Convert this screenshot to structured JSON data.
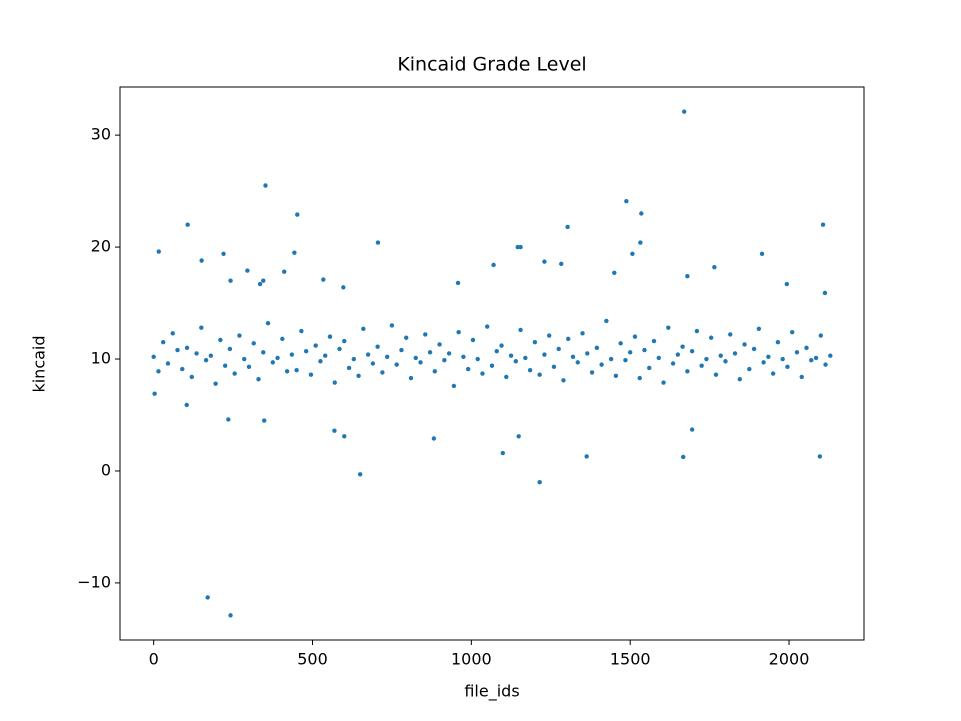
{
  "chart_data": {
    "type": "scatter",
    "title": "Kincaid Grade Level",
    "xlabel": "file_ids",
    "ylabel": "kincaid",
    "xlim": [
      -106,
      2236
    ],
    "ylim": [
      -15.1,
      34.3
    ],
    "xticks": [
      0,
      500,
      1000,
      1500,
      2000
    ],
    "yticks": [
      {
        "value": -10,
        "label": "−10"
      },
      0,
      10,
      20,
      30
    ],
    "color": "#1f77b4",
    "x": [
      0,
      15,
      30,
      45,
      60,
      75,
      90,
      105,
      120,
      135,
      150,
      165,
      180,
      195,
      210,
      225,
      240,
      255,
      270,
      285,
      300,
      315,
      330,
      345,
      360,
      375,
      390,
      405,
      420,
      435,
      450,
      465,
      480,
      495,
      510,
      525,
      540,
      555,
      570,
      585,
      600,
      615,
      630,
      645,
      660,
      675,
      690,
      705,
      720,
      735,
      750,
      765,
      780,
      795,
      810,
      825,
      840,
      855,
      870,
      885,
      900,
      915,
      930,
      945,
      960,
      975,
      990,
      1005,
      1020,
      1035,
      1050,
      1065,
      1080,
      1095,
      1110,
      1125,
      1140,
      1155,
      1170,
      1185,
      1200,
      1215,
      1230,
      1245,
      1260,
      1275,
      1290,
      1305,
      1320,
      1335,
      1350,
      1365,
      1380,
      1395,
      1410,
      1425,
      1440,
      1455,
      1470,
      1485,
      1500,
      1515,
      1530,
      1545,
      1560,
      1575,
      1590,
      1605,
      1620,
      1635,
      1650,
      1665,
      1680,
      1695,
      1710,
      1725,
      1740,
      1755,
      1770,
      1785,
      1800,
      1815,
      1830,
      1845,
      1860,
      1875,
      1890,
      1905,
      1920,
      1935,
      1950,
      1965,
      1980,
      1995,
      2010,
      2025,
      2040,
      2055,
      2070,
      2085,
      2100,
      2115,
      2130,
      1670,
      352,
      452,
      107,
      1488,
      1535,
      2107,
      1303,
      706,
      16,
      220,
      443,
      1915,
      1146,
      1155,
      1532,
      1507,
      151,
      1230,
      1283,
      1070,
      1450,
      1680,
      1765,
      411,
      295,
      242,
      335,
      345,
      534,
      597,
      958,
      2113,
      1993,
      170,
      242,
      650,
      1215,
      882,
      1099,
      1149,
      1363,
      1667,
      1695,
      2097,
      569,
      600,
      348,
      235,
      3,
      104
    ],
    "y": [
      10.2,
      8.9,
      11.5,
      9.6,
      12.3,
      10.8,
      9.1,
      11.0,
      8.4,
      10.5,
      12.8,
      9.9,
      10.3,
      7.8,
      11.7,
      9.4,
      10.9,
      8.7,
      12.1,
      10.0,
      9.3,
      11.4,
      8.2,
      10.6,
      13.2,
      9.7,
      10.1,
      11.8,
      8.9,
      10.4,
      9.0,
      12.5,
      10.7,
      8.6,
      11.2,
      9.8,
      10.3,
      12.0,
      7.9,
      10.9,
      11.6,
      9.2,
      10.0,
      8.5,
      12.7,
      10.4,
      9.6,
      11.1,
      8.8,
      10.2,
      13.0,
      9.5,
      10.8,
      11.9,
      8.3,
      10.1,
      9.7,
      12.2,
      10.6,
      8.9,
      11.3,
      9.9,
      10.5,
      7.6,
      12.4,
      10.2,
      9.1,
      11.7,
      10.0,
      8.7,
      12.9,
      9.4,
      10.7,
      11.2,
      8.4,
      10.3,
      9.8,
      12.6,
      10.1,
      9.0,
      11.5,
      8.6,
      10.4,
      12.1,
      9.3,
      10.9,
      8.1,
      11.8,
      10.2,
      9.7,
      12.3,
      10.5,
      8.8,
      11.0,
      9.5,
      13.4,
      10.0,
      8.5,
      11.4,
      9.9,
      10.6,
      12.0,
      8.3,
      10.8,
      9.2,
      11.6,
      10.1,
      7.9,
      12.8,
      9.6,
      10.4,
      11.1,
      8.9,
      10.7,
      12.5,
      9.4,
      10.0,
      11.9,
      8.6,
      10.3,
      9.8,
      12.2,
      10.5,
      8.2,
      11.3,
      9.1,
      10.9,
      12.7,
      9.7,
      10.2,
      8.7,
      11.5,
      10.0,
      9.3,
      12.4,
      10.6,
      8.4,
      11.0,
      9.9,
      10.1,
      12.1,
      9.5,
      10.3,
      32.1,
      25.5,
      22.9,
      22.0,
      24.1,
      23.0,
      22.0,
      21.8,
      20.4,
      19.6,
      19.4,
      19.5,
      19.4,
      20.0,
      20.0,
      20.4,
      19.4,
      18.8,
      18.7,
      18.5,
      18.4,
      17.7,
      17.4,
      18.2,
      17.8,
      17.9,
      17.0,
      16.7,
      17.0,
      17.1,
      16.4,
      16.8,
      15.9,
      16.7,
      -11.3,
      -12.9,
      -0.3,
      -1.0,
      2.9,
      1.6,
      3.1,
      1.3,
      1.25,
      3.7,
      1.3,
      3.6,
      3.1,
      4.5,
      4.6,
      6.9,
      5.9
    ]
  }
}
